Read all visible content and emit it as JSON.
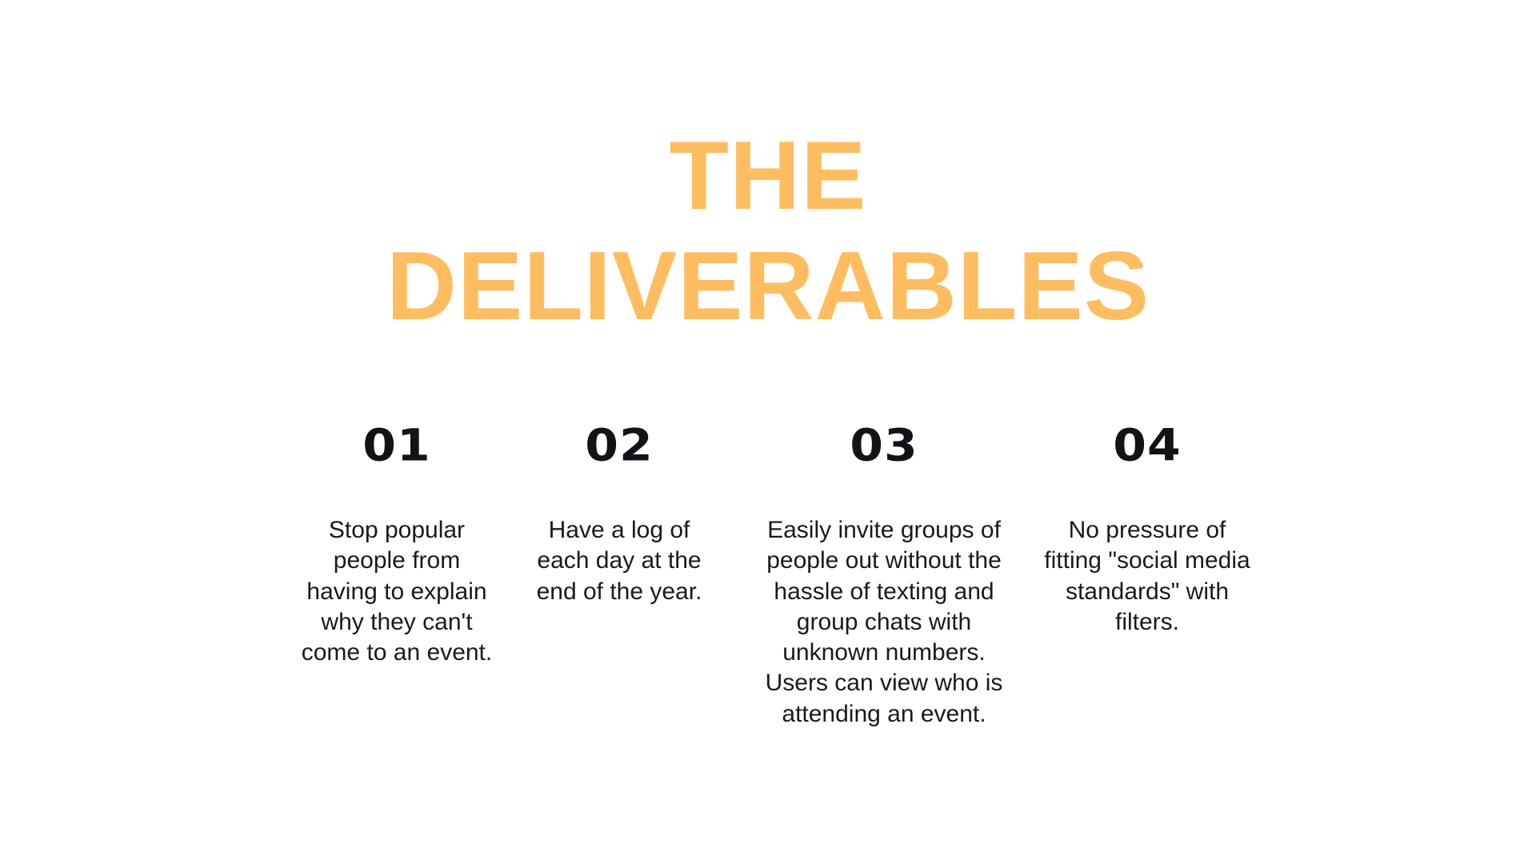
{
  "title": {
    "line1": "THE",
    "line2": "DELIVERABLES",
    "color": "#FFBD5F"
  },
  "deliverables": [
    {
      "number": "01",
      "text": "Stop popular people from having to explain why they can't come to an event."
    },
    {
      "number": "02",
      "text": "Have a log of each day at the end of the year."
    },
    {
      "number": "03",
      "text": "Easily invite groups of people out without the hassle of texting and group chats with unknown numbers. Users can view who is attending an event."
    },
    {
      "number": "04",
      "text": "No pressure of fitting \"social media standards\" with filters."
    }
  ]
}
